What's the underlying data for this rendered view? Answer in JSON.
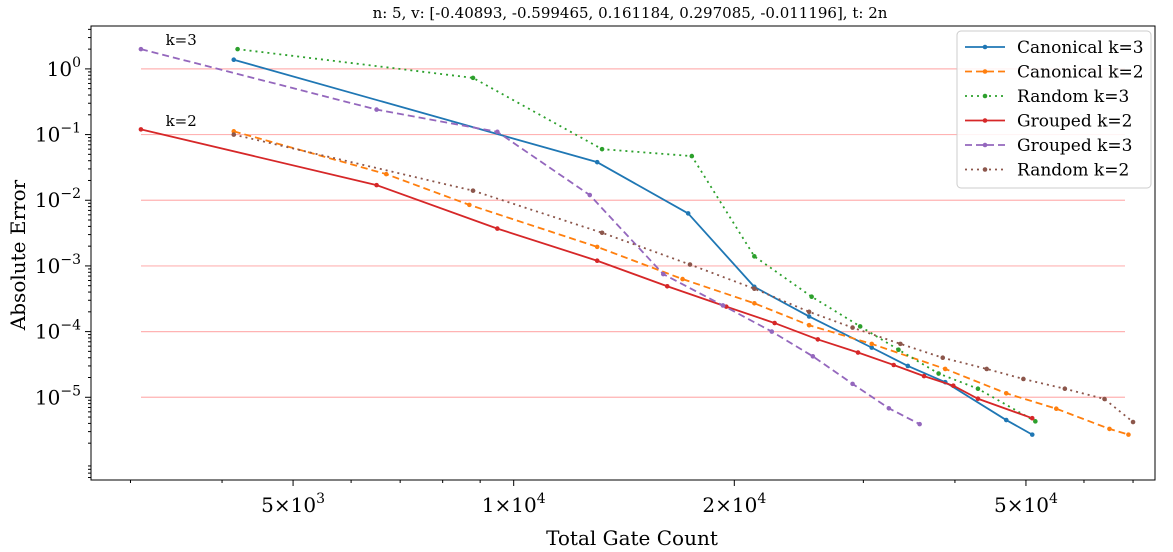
{
  "chart_data": {
    "type": "line",
    "title": "n: 5, v: [-0.40893, -0.599465, 0.161184, 0.297085, -0.011196], t: 2n",
    "xlabel": "Total Gate Count",
    "ylabel": "Absolute Error",
    "xscale": "log",
    "yscale": "log",
    "xlim": [
      2650,
      75000
    ],
    "ylim": [
      5.5e-07,
      4.5
    ],
    "x_ticks": [
      {
        "value": 5000,
        "mant": "5×10",
        "exp": "3"
      },
      {
        "value": 10000,
        "mant": "1×10",
        "exp": "4"
      },
      {
        "value": 20000,
        "mant": "2×10",
        "exp": "4"
      },
      {
        "value": 50000,
        "mant": "5×10",
        "exp": "4"
      }
    ],
    "y_ticks": [
      {
        "value": 1,
        "base": "10",
        "exp": "0"
      },
      {
        "value": 0.1,
        "base": "10",
        "exp": "−1"
      },
      {
        "value": 0.01,
        "base": "10",
        "exp": "−2"
      },
      {
        "value": 0.001,
        "base": "10",
        "exp": "−3"
      },
      {
        "value": 0.0001,
        "base": "10",
        "exp": "−4"
      },
      {
        "value": 1e-05,
        "base": "10",
        "exp": "−5"
      }
    ],
    "hlines": [
      1,
      0.1,
      0.01,
      0.001,
      0.0001,
      1e-05
    ],
    "hline_color": "#ffb3b3",
    "legend_position": "upper right",
    "annotations": [
      {
        "text": "k=3",
        "x": 3350,
        "y": 2.3
      },
      {
        "text": "k=2",
        "x": 3350,
        "y": 0.135
      }
    ],
    "series": [
      {
        "name": "Canonical k=3",
        "color": "#1f77b4",
        "dash": "",
        "x": [
          4150,
          13000,
          17300,
          21300,
          25300,
          30800,
          34500,
          38800,
          47000,
          51000
        ],
        "y": [
          1.38,
          0.038,
          0.0063,
          0.00048,
          0.00017,
          5.7e-05,
          3e-05,
          1.7e-05,
          4.5e-06,
          2.7e-06
        ]
      },
      {
        "name": "Canonical k=2",
        "color": "#ff7f0e",
        "dash": "7,4",
        "x": [
          4150,
          6700,
          8700,
          13000,
          17000,
          21300,
          25300,
          30800,
          38800,
          47000,
          55000,
          65000,
          69000
        ],
        "y": [
          0.112,
          0.025,
          0.0085,
          0.00195,
          0.00063,
          0.00027,
          0.000125,
          6.5e-05,
          2.7e-05,
          1.15e-05,
          6.7e-06,
          3.3e-06,
          2.7e-06
        ]
      },
      {
        "name": "Random k=3",
        "color": "#2ca02c",
        "dash": "2,4",
        "x": [
          4200,
          8800,
          13200,
          17500,
          21300,
          25500,
          29700,
          33500,
          38000,
          43000,
          51500
        ],
        "y": [
          2.0,
          0.73,
          0.06,
          0.047,
          0.0014,
          0.00034,
          0.00012,
          5.3e-05,
          2.3e-05,
          1.35e-05,
          4.3e-06
        ]
      },
      {
        "name": "Grouped k=2",
        "color": "#d62728",
        "dash": "",
        "x": [
          3100,
          6500,
          9500,
          13000,
          16200,
          19500,
          22700,
          26000,
          29500,
          33000,
          36300,
          39800,
          43000,
          51000
        ],
        "y": [
          0.12,
          0.017,
          0.0037,
          0.0012,
          0.00049,
          0.00024,
          0.000135,
          7.6e-05,
          4.8e-05,
          3.1e-05,
          2.1e-05,
          1.5e-05,
          9.5e-06,
          4.8e-06
        ]
      },
      {
        "name": "Grouped k=3",
        "color": "#9467bd",
        "dash": "7,4",
        "x": [
          3100,
          6500,
          9500,
          12700,
          16000,
          19300,
          22500,
          25600,
          29000,
          32500,
          35800
        ],
        "y": [
          2.0,
          0.24,
          0.11,
          0.012,
          0.00075,
          0.00025,
          0.0001,
          4.2e-05,
          1.6e-05,
          6.8e-06,
          3.9e-06
        ]
      },
      {
        "name": "Random k=2",
        "color": "#8c564b",
        "dash": "2,4",
        "x": [
          4150,
          8800,
          13200,
          17400,
          21300,
          25300,
          29000,
          33700,
          38500,
          44200,
          49600,
          56500,
          64000,
          70000
        ],
        "y": [
          0.1,
          0.014,
          0.0032,
          0.00105,
          0.00045,
          0.0002,
          0.000115,
          6.5e-05,
          4e-05,
          2.7e-05,
          1.9e-05,
          1.35e-05,
          9.4e-06,
          4.2e-06
        ]
      }
    ]
  }
}
